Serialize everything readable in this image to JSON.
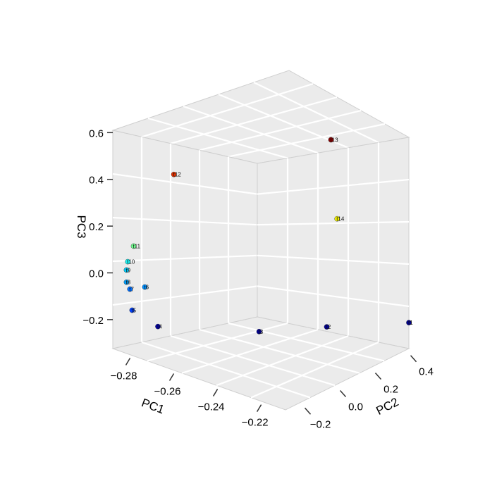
{
  "chart_data": {
    "type": "scatter3d",
    "title": "",
    "axes": {
      "x": {
        "label": "PC1",
        "range": [
          -0.285,
          -0.206
        ],
        "ticks": [
          -0.28,
          -0.26,
          -0.24,
          -0.22
        ],
        "tick_labels": [
          "−0.28",
          "−0.26",
          "−0.24",
          "−0.22"
        ]
      },
      "y": {
        "label": "PC2",
        "range": [
          -0.27,
          0.43
        ],
        "ticks": [
          -0.2,
          0.0,
          0.2,
          0.4
        ],
        "tick_labels": [
          "−0.2",
          "0.0",
          "0.2",
          "0.4"
        ]
      },
      "z": {
        "label": "PC3",
        "range": [
          -0.324,
          0.61
        ],
        "ticks": [
          -0.2,
          0.0,
          0.2,
          0.4,
          0.6
        ],
        "tick_labels": [
          "−0.2",
          "0.0",
          "0.2",
          "0.4",
          "0.6"
        ]
      }
    },
    "grid": true,
    "panel_color": "#ebebeb",
    "grid_color": "#ffffff",
    "points": [
      {
        "label": "t1",
        "x": -0.206,
        "y": 0.43,
        "z": -0.213,
        "color": "#00008f"
      },
      {
        "label": "t2",
        "x": -0.221,
        "y": 0.15,
        "z": -0.176,
        "color": "#00008f"
      },
      {
        "label": "t3",
        "x": -0.235,
        "y": -0.06,
        "z": -0.164,
        "color": "#00008f"
      },
      {
        "label": "t4",
        "x": -0.27,
        "y": -0.2,
        "z": -0.206,
        "color": "#0000a8"
      },
      {
        "label": "t5",
        "x": -0.279,
        "y": -0.235,
        "z": -0.153,
        "color": "#0040ff"
      },
      {
        "label": "t6",
        "x": -0.276,
        "y": -0.2,
        "z": -0.057,
        "color": "#0090ff"
      },
      {
        "label": "t7",
        "x": -0.28,
        "y": -0.235,
        "z": -0.066,
        "color": "#0070ff"
      },
      {
        "label": "t8",
        "x": -0.281,
        "y": -0.242,
        "z": -0.037,
        "color": "#00a0ff"
      },
      {
        "label": "t9",
        "x": -0.281,
        "y": -0.242,
        "z": 0.015,
        "color": "#00d0ff"
      },
      {
        "label": "t10",
        "x": -0.281,
        "y": -0.235,
        "z": 0.048,
        "color": "#20f0f0"
      },
      {
        "label": "t11",
        "x": -0.28,
        "y": -0.214,
        "z": 0.11,
        "color": "#70ff90"
      },
      {
        "label": "t12",
        "x": -0.274,
        "y": -0.06,
        "z": 0.379,
        "color": "#e03000"
      },
      {
        "label": "t13",
        "x": -0.236,
        "y": 0.36,
        "z": 0.496,
        "color": "#800000"
      },
      {
        "label": "t14",
        "x": -0.236,
        "y": 0.395,
        "z": 0.145,
        "color": "#f0f000"
      }
    ]
  }
}
